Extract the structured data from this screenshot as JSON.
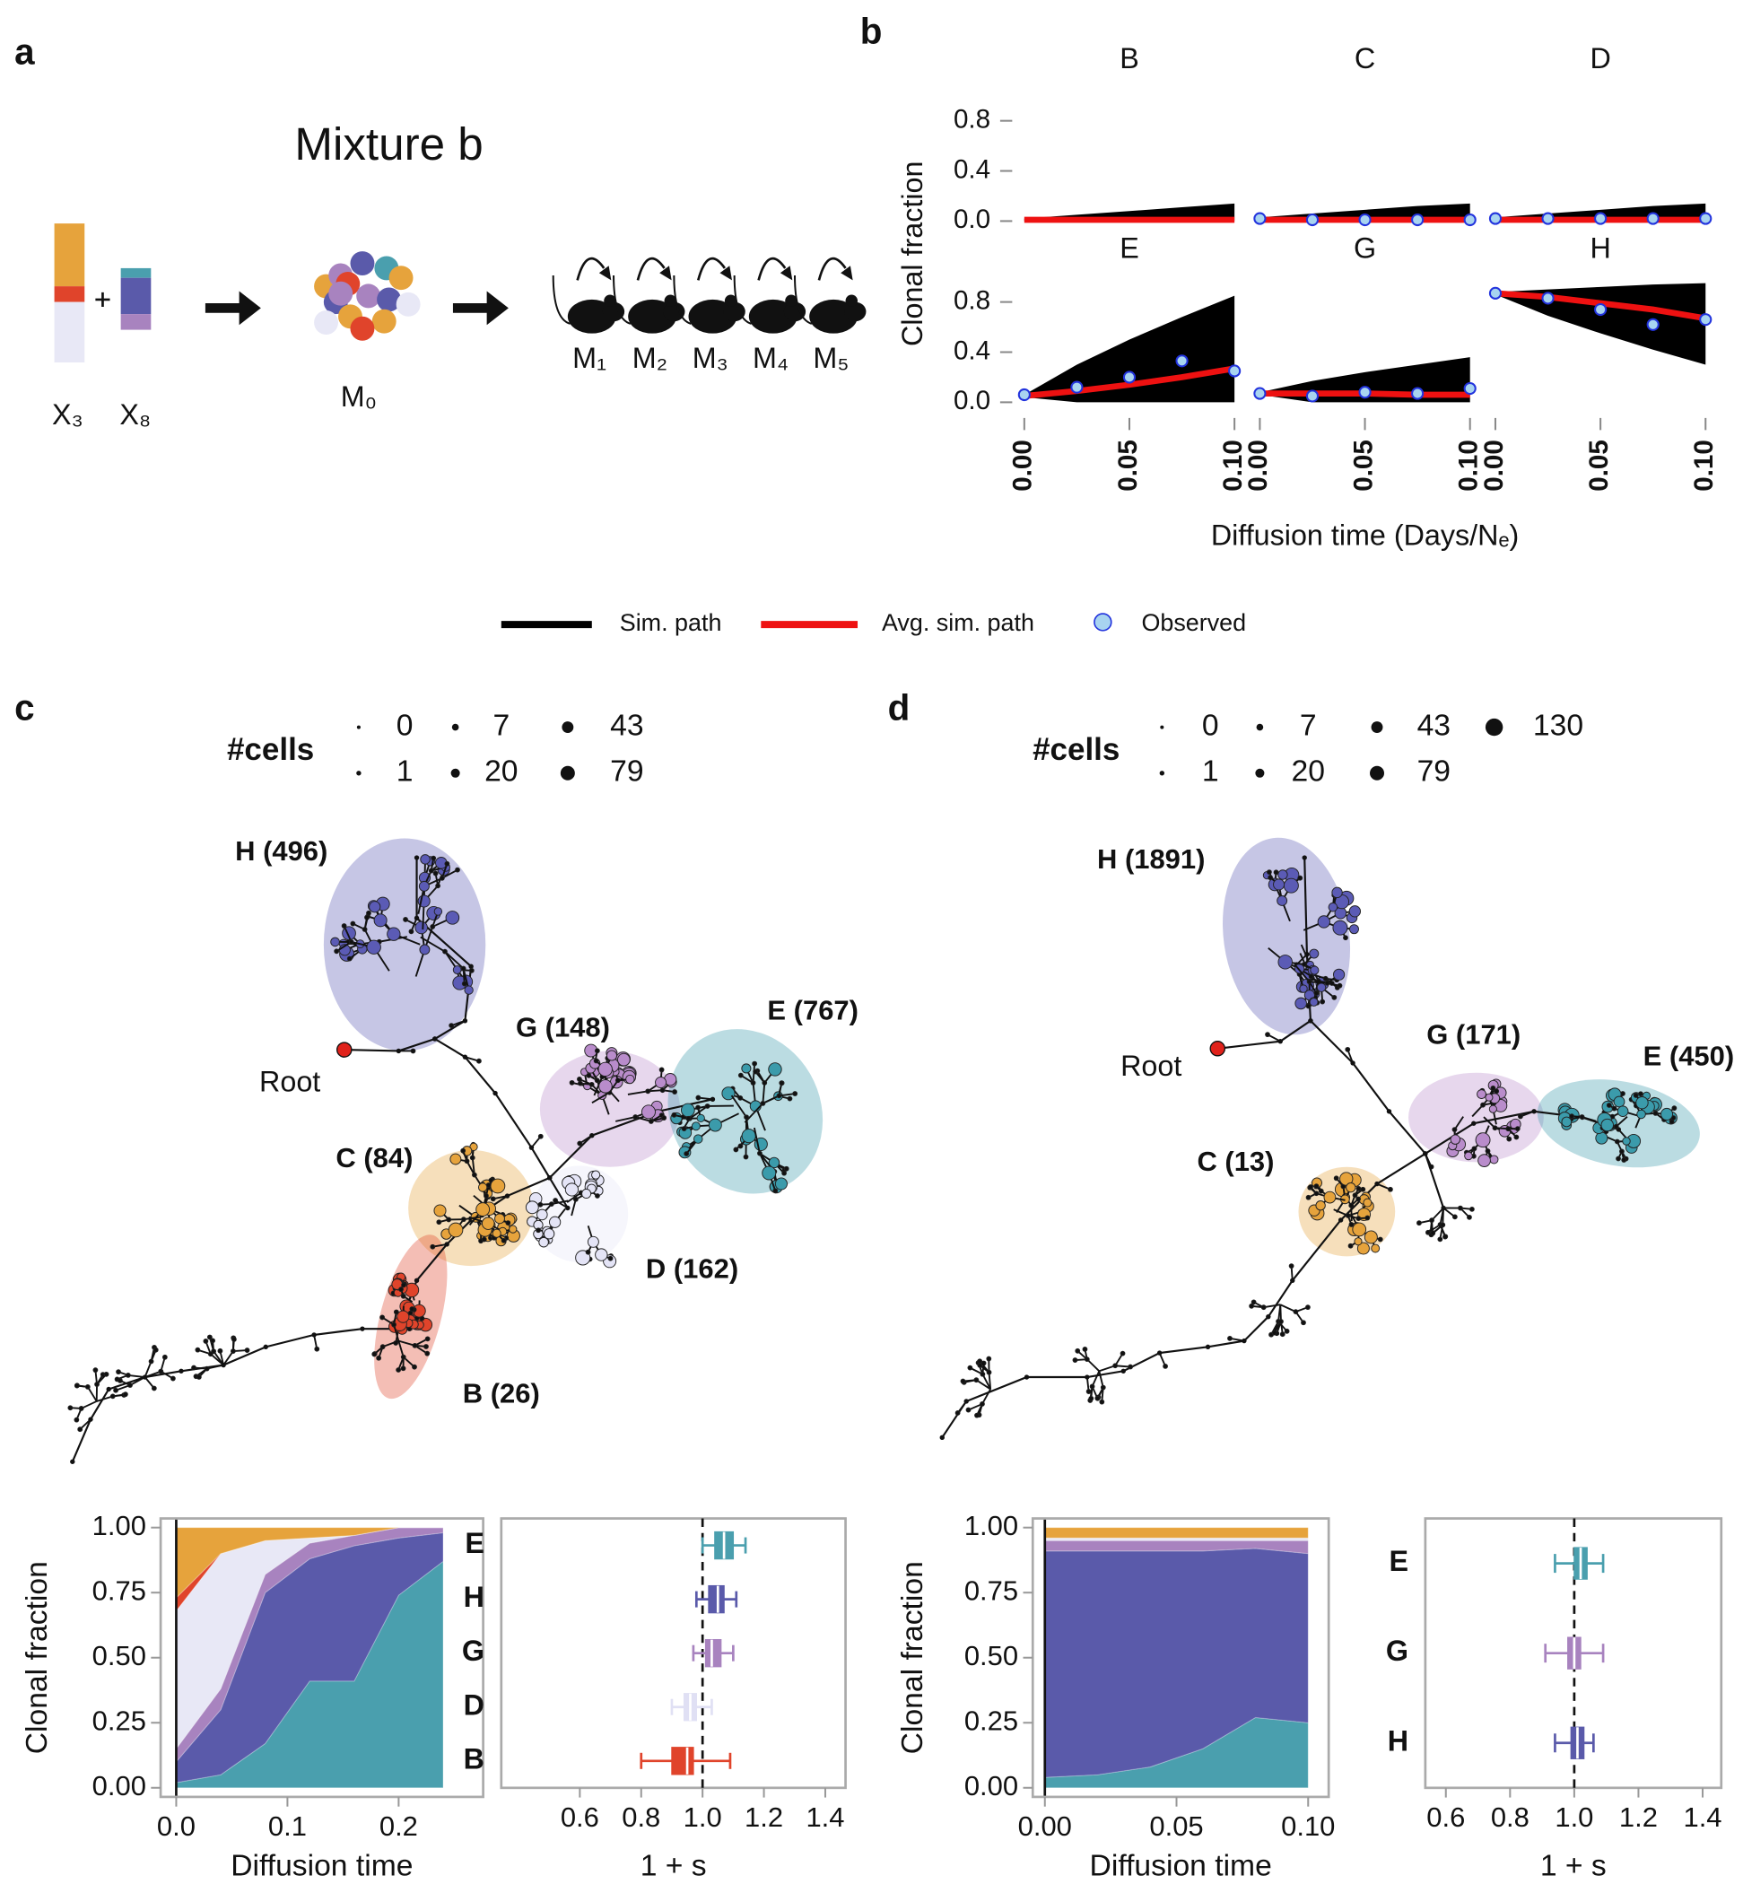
{
  "panel_labels": [
    "a",
    "b",
    "c",
    "d"
  ],
  "panel_a": {
    "title": "Mixture b",
    "inputs": [
      "X₃",
      "X₈"
    ],
    "mixture": "M₀",
    "mice": [
      "M₁",
      "M₂",
      "M₃",
      "M₄",
      "M₅"
    ]
  },
  "figure_b": {
    "y_label": "Clonal fraction",
    "x_label": "Diffusion time (Days/Nₑ)",
    "ylim": [
      -0.05,
      0.9
    ],
    "yticks": [
      {
        "value": 0,
        "label": "0.0"
      },
      0.4,
      0.8
    ],
    "xlim": [
      -0.003,
      0.103
    ],
    "xticks": [
      {
        "value": 0,
        "label": "0.00"
      },
      0.05,
      {
        "value": 0.1,
        "label": "0.10"
      }
    ],
    "legend": [
      {
        "name": "Sim. path",
        "color": "#000000"
      },
      {
        "name": "Avg. sim. path",
        "color": "#ee1111"
      },
      {
        "name": "Observed",
        "color": "#a8d4f0"
      }
    ]
  },
  "chart_data": [
    {
      "type": "line",
      "title": "B",
      "x": [
        0,
        0.025,
        0.05,
        0.075,
        0.1
      ],
      "sim_lower": [
        0,
        0,
        0,
        0,
        0
      ],
      "sim_upper": [
        0.02,
        0.05,
        0.08,
        0.11,
        0.14
      ],
      "avg": [
        0.01,
        0.01,
        0.01,
        0.01,
        0.01
      ]
    },
    {
      "type": "line",
      "title": "C",
      "x": [
        0,
        0.025,
        0.05,
        0.075,
        0.1
      ],
      "sim_lower": [
        0,
        0,
        0,
        0,
        0
      ],
      "sim_upper": [
        0.03,
        0.06,
        0.09,
        0.12,
        0.14
      ],
      "avg": [
        0.01,
        0.01,
        0.01,
        0.01,
        0.01
      ],
      "observed": [
        0.02,
        0.01,
        0.01,
        0.01,
        0.01
      ]
    },
    {
      "type": "line",
      "title": "D",
      "x": [
        0,
        0.025,
        0.05,
        0.075,
        0.1
      ],
      "sim_lower": [
        0,
        0,
        0,
        0,
        0
      ],
      "sim_upper": [
        0.03,
        0.06,
        0.09,
        0.12,
        0.14
      ],
      "avg": [
        0.01,
        0.01,
        0.01,
        0.01,
        0.01
      ],
      "observed": [
        0.02,
        0.02,
        0.02,
        0.02,
        0.02
      ]
    },
    {
      "type": "line",
      "title": "E",
      "x": [
        0,
        0.025,
        0.05,
        0.075,
        0.1
      ],
      "sim_lower": [
        0.04,
        0,
        0,
        0,
        0
      ],
      "sim_upper": [
        0.06,
        0.3,
        0.5,
        0.68,
        0.85
      ],
      "avg": [
        0.05,
        0.09,
        0.14,
        0.2,
        0.27
      ],
      "observed": [
        0.06,
        0.12,
        0.2,
        0.33,
        0.25
      ]
    },
    {
      "type": "line",
      "title": "G",
      "x": [
        0,
        0.025,
        0.05,
        0.075,
        0.1
      ],
      "sim_lower": [
        0.06,
        0,
        0,
        0,
        0
      ],
      "sim_upper": [
        0.08,
        0.17,
        0.24,
        0.3,
        0.36
      ],
      "avg": [
        0.07,
        0.07,
        0.07,
        0.06,
        0.06
      ],
      "observed": [
        0.07,
        0.05,
        0.08,
        0.07,
        0.11
      ]
    },
    {
      "type": "line",
      "title": "H",
      "x": [
        0,
        0.025,
        0.05,
        0.075,
        0.1
      ],
      "sim_lower": [
        0.86,
        0.69,
        0.55,
        0.42,
        0.3
      ],
      "sim_upper": [
        0.88,
        0.9,
        0.92,
        0.94,
        0.95
      ],
      "avg": [
        0.87,
        0.84,
        0.79,
        0.74,
        0.67
      ],
      "observed": [
        0.87,
        0.83,
        0.74,
        0.62,
        0.66
      ]
    },
    {
      "type": "area",
      "y_label": "Clonal fraction",
      "x_label": "Diffusion time",
      "x": [
        0,
        0.04,
        0.08,
        0.12,
        0.16,
        0.2,
        0.24
      ],
      "xlim": [
        -0.014,
        0.276
      ],
      "xticks": [
        {
          "value": 0,
          "label": "0.0"
        },
        0.1,
        0.2
      ],
      "ylim": [
        -0.035,
        1.035
      ],
      "yticks": [
        {
          "value": 0,
          "label": "0.00"
        },
        0.25,
        {
          "value": 0.5,
          "label": "0.50"
        },
        0.75,
        {
          "value": 1,
          "label": "1.00"
        }
      ],
      "series": [
        {
          "color": "#4a9fae",
          "values": [
            0.02,
            0.05,
            0.17,
            0.41,
            0.41,
            0.74,
            0.87
          ]
        },
        {
          "color": "#5a5aaa",
          "values": [
            0.08,
            0.25,
            0.58,
            0.47,
            0.52,
            0.22,
            0.11
          ]
        },
        {
          "color": "#a883bf",
          "values": [
            0.05,
            0.08,
            0.07,
            0.06,
            0.04,
            0.04,
            0.02
          ]
        },
        {
          "color": "#e8e8f6",
          "values": [
            0.53,
            0.52,
            0.13,
            0.02,
            0,
            0,
            0
          ]
        },
        {
          "color": "#e0442b",
          "values": [
            0.05,
            0,
            0,
            0,
            0,
            0,
            0
          ]
        },
        {
          "color": "#e6a33c",
          "values": [
            0.27,
            0.1,
            0.05,
            0.04,
            0.03,
            0,
            0
          ]
        }
      ]
    },
    {
      "type": "box",
      "x_label": "1 + s",
      "categories": [
        "E",
        "H",
        "G",
        "D",
        "B"
      ],
      "xlim": [
        0.344,
        1.466
      ],
      "xticks": [
        0.6,
        0.8,
        {
          "value": 1,
          "label": "1.0"
        },
        1.2,
        1.4
      ],
      "refline": 1,
      "colors": [
        "#4a9fae",
        "#5a5aaa",
        "#a883bf",
        "#e0e0f4",
        "#e0442b"
      ],
      "boxes": [
        {
          "low": 1.0,
          "q1": 1.04,
          "median": 1.07,
          "q3": 1.1,
          "high": 1.14
        },
        {
          "low": 0.98,
          "q1": 1.02,
          "median": 1.05,
          "q3": 1.07,
          "high": 1.11
        },
        {
          "low": 0.97,
          "q1": 1.01,
          "median": 1.03,
          "q3": 1.06,
          "high": 1.1
        },
        {
          "low": 0.9,
          "q1": 0.94,
          "median": 0.96,
          "q3": 0.98,
          "high": 1.03
        },
        {
          "low": 0.8,
          "q1": 0.9,
          "median": 0.95,
          "q3": 0.97,
          "high": 1.09
        }
      ]
    },
    {
      "type": "area",
      "y_label": "Clonal fraction",
      "x_label": "Diffusion time",
      "x": [
        0,
        0.02,
        0.04,
        0.06,
        0.08,
        0.1
      ],
      "xlim": [
        -0.0046,
        0.1078
      ],
      "xticks": [
        {
          "value": 0,
          "label": "0.00"
        },
        0.05,
        {
          "value": 0.1,
          "label": "0.10"
        }
      ],
      "ylim": [
        -0.035,
        1.035
      ],
      "yticks": [
        {
          "value": 0,
          "label": "0.00"
        },
        0.25,
        {
          "value": 0.5,
          "label": "0.50"
        },
        0.75,
        {
          "value": 1,
          "label": "1.00"
        }
      ],
      "series": [
        {
          "color": "#4a9fae",
          "values": [
            0.04,
            0.05,
            0.08,
            0.15,
            0.27,
            0.25
          ]
        },
        {
          "color": "#5a5aaa",
          "values": [
            0.87,
            0.86,
            0.83,
            0.76,
            0.65,
            0.65
          ]
        },
        {
          "color": "#a883bf",
          "values": [
            0.04,
            0.04,
            0.04,
            0.04,
            0.03,
            0.05
          ]
        },
        {
          "color": "#e8e8f6",
          "values": [
            0.01,
            0.01,
            0.01,
            0.01,
            0.01,
            0.01
          ]
        },
        {
          "color": "#e6a33c",
          "values": [
            0.04,
            0.04,
            0.04,
            0.04,
            0.04,
            0.04
          ]
        }
      ]
    },
    {
      "type": "box",
      "x_label": "1 + s",
      "categories": [
        "E",
        "G",
        "H"
      ],
      "xlim": [
        0.536,
        1.458
      ],
      "xticks": [
        0.6,
        0.8,
        {
          "value": 1,
          "label": "1.0"
        },
        1.2,
        1.4
      ],
      "refline": 1,
      "colors": [
        "#4a9fae",
        "#a883bf",
        "#5a5aaa"
      ],
      "boxes": [
        {
          "low": 0.94,
          "q1": 1.0,
          "median": 1.02,
          "q3": 1.04,
          "high": 1.09
        },
        {
          "low": 0.91,
          "q1": 0.98,
          "median": 1.0,
          "q3": 1.02,
          "high": 1.09
        },
        {
          "low": 0.94,
          "q1": 0.99,
          "median": 1.01,
          "q3": 1.03,
          "high": 1.06
        }
      ]
    }
  ],
  "trees": [
    {
      "size_title": "#cells",
      "sizes": [
        0,
        1,
        7,
        20,
        43,
        79
      ],
      "root": "Root",
      "clones": [
        {
          "label": "H (496)",
          "color": "#5b5bb5"
        },
        {
          "label": "G (148)",
          "color": "#b98ccb"
        },
        {
          "label": "E (767)",
          "color": "#3b9bab"
        },
        {
          "label": "C (84)",
          "color": "#e6a33c"
        },
        {
          "label": "D (162)",
          "color": "#e4e4f6"
        },
        {
          "label": "B (26)",
          "color": "#e0442b"
        }
      ]
    },
    {
      "size_title": "#cells",
      "sizes": [
        0,
        1,
        7,
        20,
        43,
        79,
        130
      ],
      "root": "Root",
      "clones": [
        {
          "label": "H (1891)",
          "color": "#5b5bb5"
        },
        {
          "label": "G (171)",
          "color": "#b98ccb"
        },
        {
          "label": "E (450)",
          "color": "#3b9bab"
        },
        {
          "label": "C (13)",
          "color": "#e6a33c"
        }
      ]
    }
  ]
}
